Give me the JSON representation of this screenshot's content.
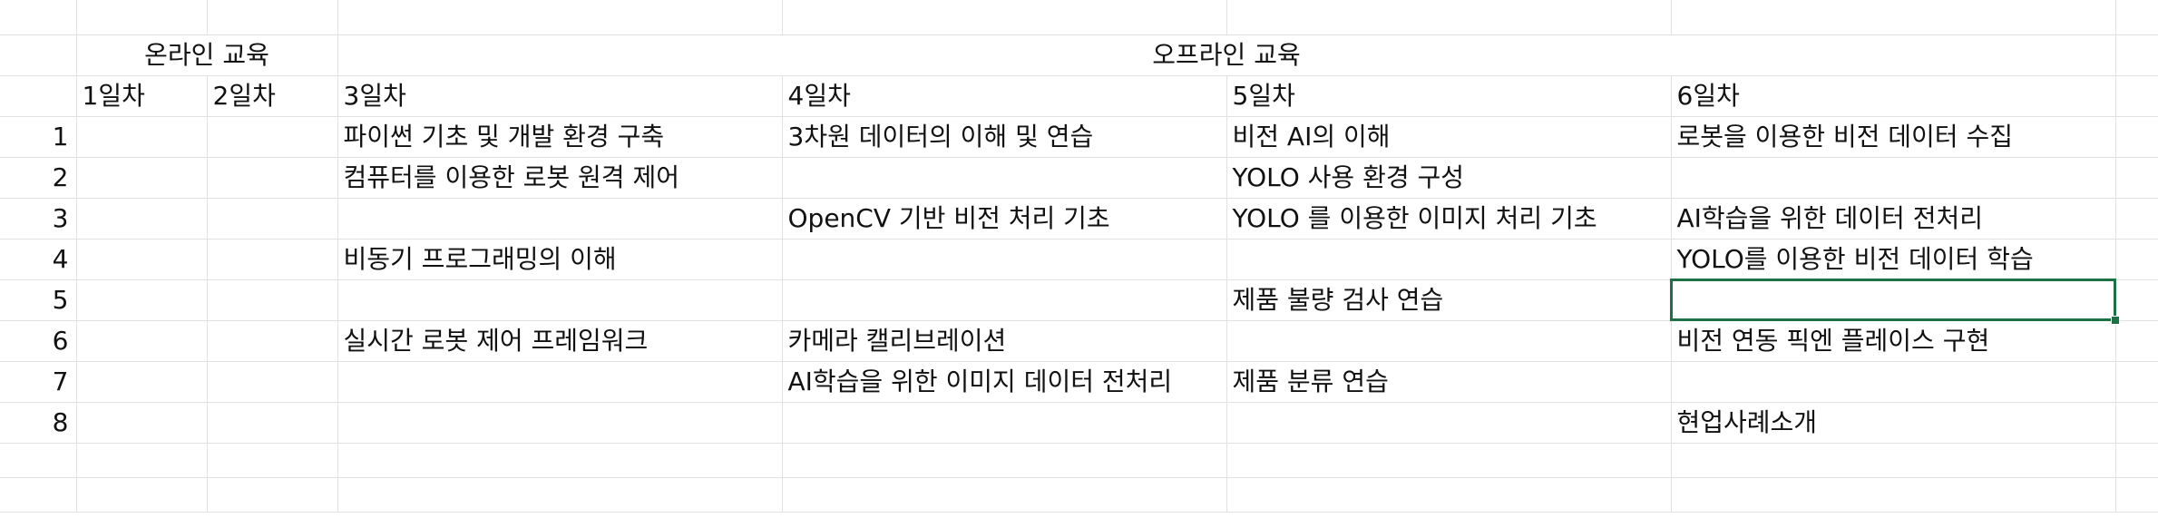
{
  "header": {
    "online_label": "온라인 교육",
    "offline_label": "오프라인 교육"
  },
  "days": [
    "1일차",
    "2일차",
    "3일차",
    "4일차",
    "5일차",
    "6일차"
  ],
  "rows": [
    {
      "num": "1",
      "d3": "파이썬 기초 및 개발 환경 구축",
      "d4": "3차원 데이터의 이해 및 연습",
      "d5": "비전 AI의 이해",
      "d6": "로봇을 이용한 비전 데이터 수집"
    },
    {
      "num": "2",
      "d3": "컴퓨터를 이용한 로봇 원격 제어",
      "d4": "",
      "d5": "YOLO 사용 환경 구성",
      "d6": ""
    },
    {
      "num": "3",
      "d3": "",
      "d4": "OpenCV 기반 비전 처리 기초",
      "d5": "YOLO 를 이용한 이미지 처리 기초",
      "d6": "AI학습을 위한 데이터 전처리"
    },
    {
      "num": "4",
      "d3": "비동기 프로그래밍의 이해",
      "d4": "",
      "d5": "",
      "d6": "YOLO를 이용한 비전 데이터 학습"
    },
    {
      "num": "5",
      "d3": "",
      "d4": "",
      "d5": "제품 불량 검사 연습",
      "d6": ""
    },
    {
      "num": "6",
      "d3": "실시간 로봇 제어 프레임워크",
      "d4": "카메라 캘리브레이션",
      "d5": "",
      "d6": "비전 연동 픽엔 플레이스 구현"
    },
    {
      "num": "7",
      "d3": "",
      "d4": "AI학습을 위한 이미지 데이터 전처리",
      "d5": "제품 분류 연습",
      "d6": ""
    },
    {
      "num": "8",
      "d3": "",
      "d4": "",
      "d5": "",
      "d6": "현업사례소개"
    }
  ],
  "colors": {
    "gridline": "#e1e1e1",
    "selection": "#1e7145"
  }
}
